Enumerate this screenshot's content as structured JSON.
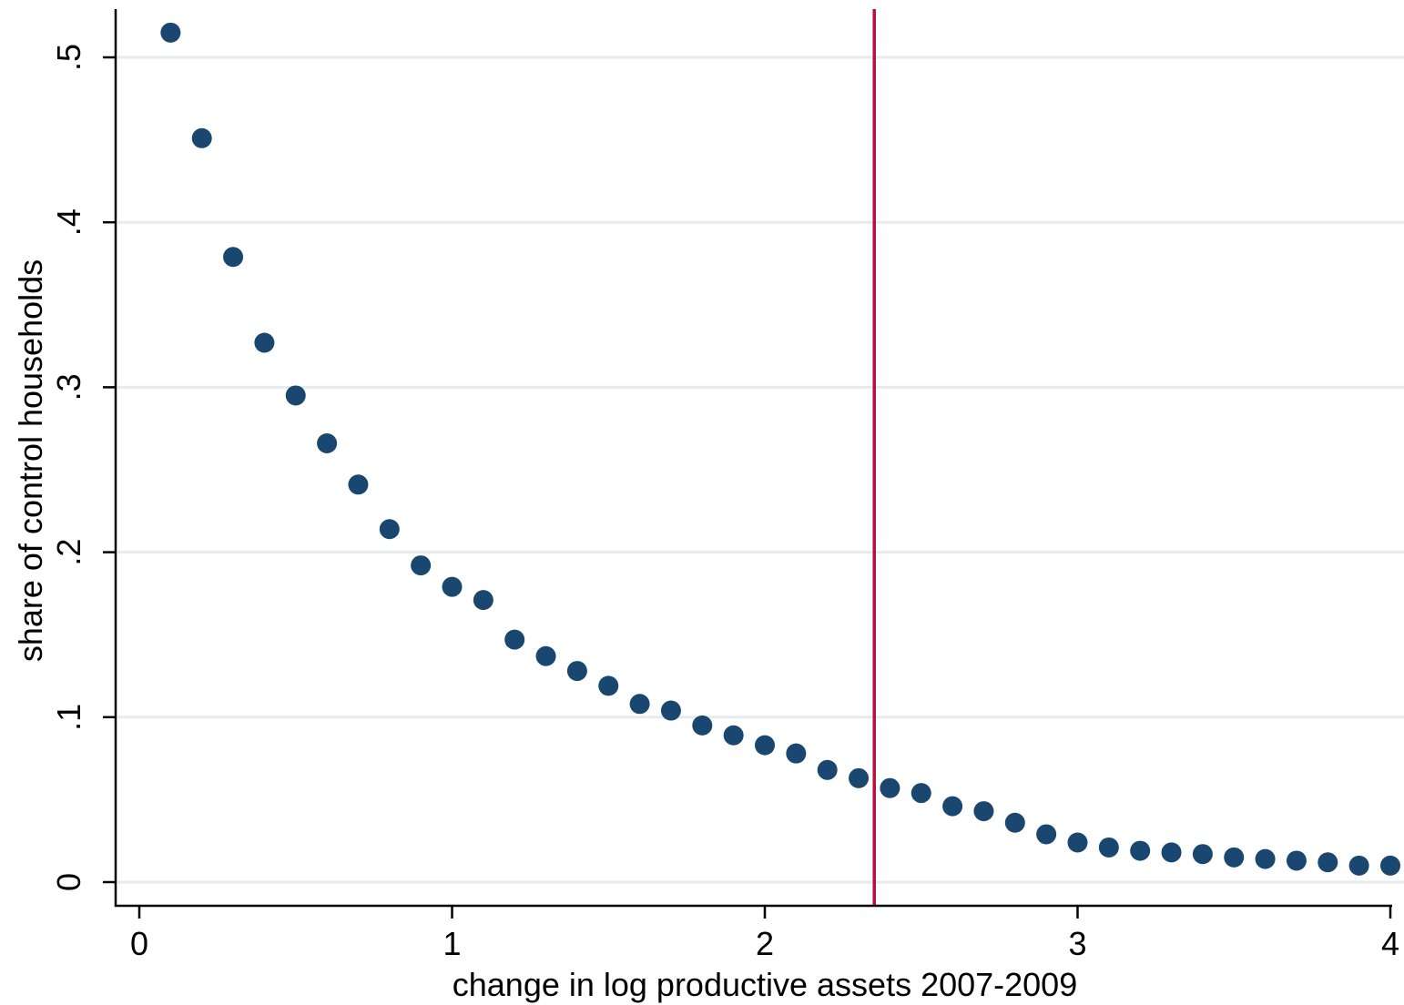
{
  "chart_data": {
    "type": "scatter",
    "xlabel": "change in log productive assets 2007-2009",
    "ylabel": "share of control households",
    "xlim": [
      0,
      4
    ],
    "ylim": [
      0,
      0.5
    ],
    "x_ticks": [
      {
        "value": 0,
        "label": "0"
      },
      {
        "value": 1,
        "label": "1"
      },
      {
        "value": 2,
        "label": "2"
      },
      {
        "value": 3,
        "label": "3"
      },
      {
        "value": 4,
        "label": "4"
      }
    ],
    "y_ticks": [
      {
        "value": 0,
        "label": "0"
      },
      {
        "value": 0.1,
        "label": ".1"
      },
      {
        "value": 0.2,
        "label": ".2"
      },
      {
        "value": 0.3,
        "label": ".3"
      },
      {
        "value": 0.4,
        "label": ".4"
      },
      {
        "value": 0.5,
        "label": ".5"
      }
    ],
    "grid": "horizontal",
    "reference_line": {
      "orientation": "vertical",
      "x": 2.35,
      "color": "#b5123e"
    },
    "marker_color": "#1a476f",
    "grid_color": "#e5ebee",
    "series": [
      {
        "x": [
          0.1,
          0.2,
          0.3,
          0.4,
          0.5,
          0.6,
          0.7,
          0.8,
          0.9,
          1.0,
          1.1,
          1.2,
          1.3,
          1.4,
          1.5,
          1.6,
          1.7,
          1.8,
          1.9,
          2.0,
          2.1,
          2.2,
          2.3,
          2.4,
          2.5,
          2.6,
          2.7,
          2.8,
          2.9,
          3.0,
          3.1,
          3.2,
          3.3,
          3.4,
          3.5,
          3.6,
          3.7,
          3.8,
          3.9,
          4.0
        ],
        "y": [
          0.515,
          0.451,
          0.379,
          0.327,
          0.295,
          0.266,
          0.241,
          0.214,
          0.192,
          0.179,
          0.171,
          0.147,
          0.137,
          0.128,
          0.119,
          0.108,
          0.104,
          0.095,
          0.089,
          0.083,
          0.078,
          0.068,
          0.063,
          0.057,
          0.054,
          0.046,
          0.043,
          0.036,
          0.029,
          0.024,
          0.021,
          0.019,
          0.018,
          0.017,
          0.015,
          0.014,
          0.013,
          0.012,
          0.01,
          0.01
        ]
      }
    ]
  }
}
